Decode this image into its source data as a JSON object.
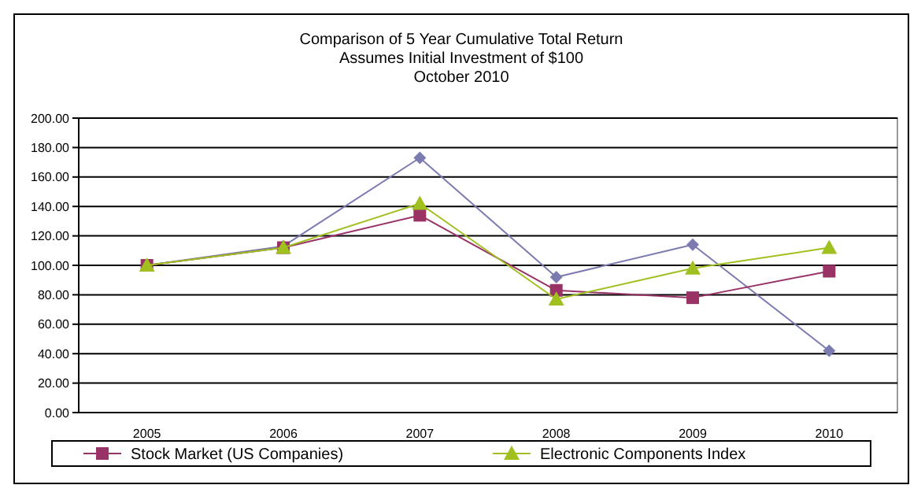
{
  "chart_data": {
    "type": "line",
    "title": "Comparison of 5 Year Cumulative Total Return",
    "subtitle": "Assumes Initial Investment of $100",
    "annotations": [
      "October 2010"
    ],
    "categories": [
      "2005",
      "2006",
      "2007",
      "2008",
      "2009",
      "2010"
    ],
    "series": [
      {
        "color": "#7b7bb0",
        "marker": "diamond",
        "values": [
          100,
          113,
          173,
          92,
          114,
          42
        ]
      },
      {
        "name": "Stock Market (US Companies)",
        "color": "#993366",
        "marker": "square",
        "values": [
          100,
          112,
          134,
          83,
          78,
          96
        ]
      },
      {
        "name": "Electronic Components Index",
        "color": "#a0c020",
        "marker": "triangle",
        "values": [
          100,
          112,
          142,
          77,
          98,
          112
        ]
      }
    ],
    "ylim": [
      0,
      200
    ],
    "yticks": [
      {
        "value": 0,
        "label": "0.00"
      },
      {
        "value": 20,
        "label": "20.00"
      },
      {
        "value": 40,
        "label": "40.00"
      },
      {
        "value": 60,
        "label": "60.00"
      },
      {
        "value": 80,
        "label": "80.00"
      },
      {
        "value": 100,
        "label": "100.00"
      },
      {
        "value": 120,
        "label": "120.00"
      },
      {
        "value": 140,
        "label": "140.00"
      },
      {
        "value": 160,
        "label": "160.00"
      },
      {
        "value": 180,
        "label": "180.00"
      },
      {
        "value": 200,
        "label": "200.00"
      }
    ],
    "grid": "y",
    "legend": "bottom",
    "line_style": "solid"
  }
}
